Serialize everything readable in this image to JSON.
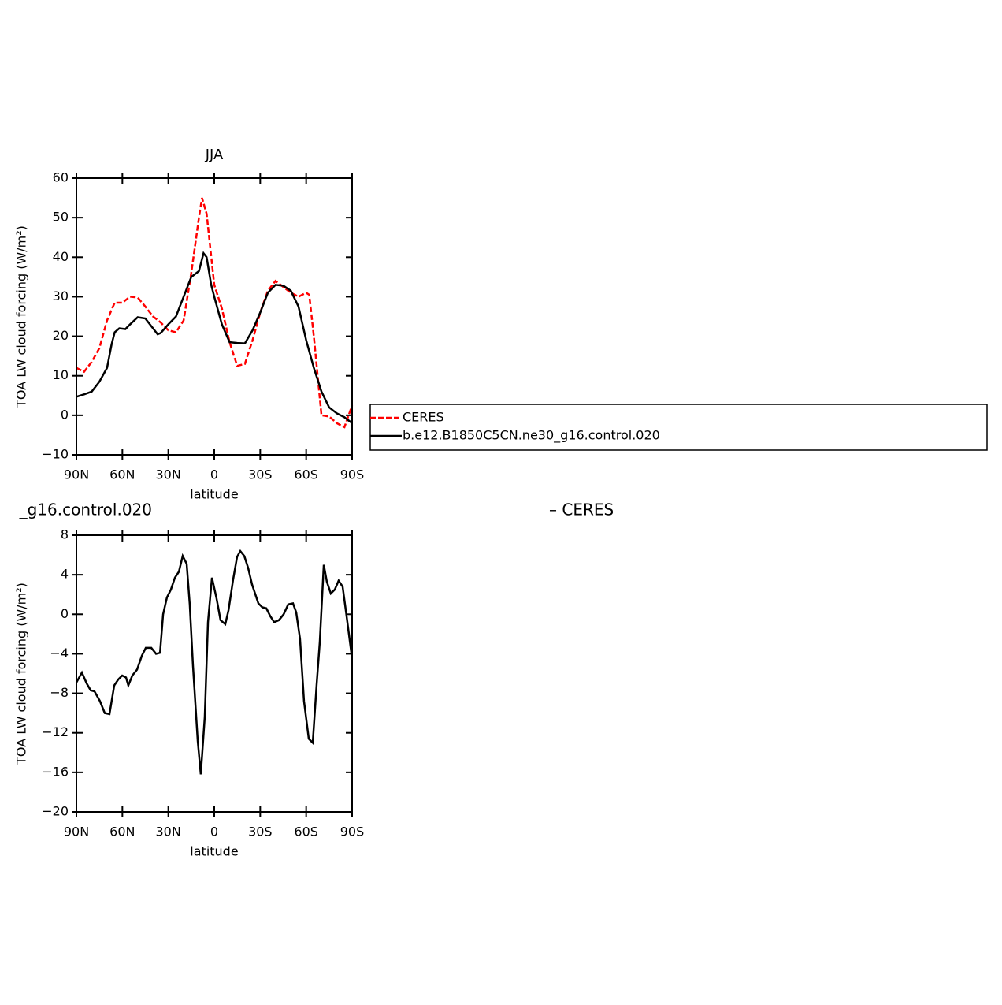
{
  "chart_data": [
    {
      "type": "line",
      "title": "JJA",
      "xlabel": "latitude",
      "ylabel": "TOA LW cloud forcing (W/m²)",
      "xlim": [
        90,
        -90
      ],
      "ylim": [
        -10,
        60
      ],
      "xticks": [
        {
          "value": 90,
          "label": "90N"
        },
        {
          "value": 60,
          "label": "60N"
        },
        {
          "value": 30,
          "label": "30N"
        },
        0,
        {
          "value": -30,
          "label": "30S"
        },
        {
          "value": -60,
          "label": "60S"
        },
        {
          "value": -90,
          "label": "90S"
        }
      ],
      "yticks": [
        {
          "value": -10,
          "label": "−10"
        },
        0,
        10,
        20,
        30,
        40,
        50,
        60
      ],
      "legend": "right",
      "series": [
        {
          "name": "CERES",
          "color": "#ff0000",
          "dash": true,
          "x": [
            90,
            85,
            80,
            75,
            70,
            65,
            60,
            55,
            50,
            45,
            40,
            35,
            30,
            25,
            20,
            15,
            10,
            8,
            5,
            0,
            -5,
            -10,
            -15,
            -20,
            -25,
            -30,
            -35,
            -40,
            -45,
            -50,
            -55,
            -60,
            -62,
            -65,
            -68,
            -70,
            -75,
            -80,
            -85,
            -90
          ],
          "values": [
            12,
            11,
            13.5,
            17,
            24,
            28.5,
            28.5,
            30,
            29.8,
            27.5,
            25,
            23.5,
            21.5,
            21,
            24,
            36,
            50,
            55,
            51,
            33,
            27,
            18.5,
            12.5,
            13,
            19,
            26,
            31.5,
            34,
            32.5,
            31,
            30,
            31,
            30.5,
            20,
            8,
            0,
            -0.3,
            -2,
            -3,
            2.5
          ]
        },
        {
          "name": "b.e12.B1850C5CN.ne30_g16.control.020",
          "color": "#000000",
          "dash": false,
          "x": [
            90,
            85,
            80,
            75,
            70,
            67,
            65,
            62,
            58,
            55,
            50,
            45,
            40,
            37,
            35,
            30,
            25,
            20,
            15,
            10,
            7,
            5,
            2,
            0,
            -5,
            -10,
            -15,
            -20,
            -25,
            -30,
            -35,
            -40,
            -45,
            -50,
            -55,
            -60,
            -65,
            -70,
            -75,
            -80,
            -85,
            -90
          ],
          "values": [
            4.7,
            5.3,
            6,
            8.5,
            12,
            18,
            21,
            22,
            21.8,
            23,
            24.8,
            24.5,
            22,
            20.5,
            20.8,
            23,
            25,
            30,
            35,
            36.5,
            41,
            40,
            33,
            30,
            23,
            18.5,
            18.3,
            18.2,
            21.5,
            26,
            31,
            33,
            32.8,
            31.5,
            27.5,
            19,
            12,
            6,
            2,
            0.5,
            -0.5,
            -2
          ]
        }
      ]
    },
    {
      "type": "line",
      "title": "_g16.control.020",
      "subtitle": "– CERES",
      "xlabel": "latitude",
      "ylabel": "TOA LW cloud forcing (W/m²)",
      "xlim": [
        90,
        -90
      ],
      "ylim": [
        -20,
        8
      ],
      "xticks": [
        {
          "value": 90,
          "label": "90N"
        },
        {
          "value": 60,
          "label": "60N"
        },
        {
          "value": 30,
          "label": "30N"
        },
        0,
        {
          "value": -30,
          "label": "30S"
        },
        {
          "value": -60,
          "label": "60S"
        },
        {
          "value": -90,
          "label": "90S"
        }
      ],
      "yticks": [
        {
          "value": -20,
          "label": "−20"
        },
        {
          "value": -16,
          "label": "−16"
        },
        {
          "value": -12,
          "label": "−12"
        },
        {
          "value": -8,
          "label": "−8"
        },
        {
          "value": -4,
          "label": "−4"
        },
        0,
        4,
        8
      ],
      "series": [
        {
          "color": "#000000",
          "dash": false,
          "x": [
            90,
            86.4,
            83.3,
            80.7,
            78.2,
            74.6,
            71.5,
            68.4,
            65.3,
            62.7,
            60.1,
            57.6,
            56.1,
            53.5,
            50.4,
            47.3,
            44.7,
            41.1,
            38,
            35.4,
            33.4,
            30.9,
            28.3,
            25.7,
            23.1,
            20.6,
            18,
            16,
            13.9,
            10.8,
            8.8,
            6.2,
            4.1,
            1.5,
            -1.5,
            -4.1,
            -7.2,
            -9.3,
            -12.3,
            -14.9,
            -17,
            -19.6,
            -22.1,
            -24.7,
            -28.8,
            -31.4,
            -34,
            -36.6,
            -39.1,
            -42.2,
            -45.3,
            -48.3,
            -51.4,
            -53.5,
            -56,
            -58.6,
            -61.7,
            -64.3,
            -66.8,
            -68.9,
            -71.5,
            -73.5,
            -76.1,
            -78.7,
            -81.2,
            -83.8,
            -86.4,
            -89.5
          ],
          "values": [
            -6.9,
            -5.9,
            -7,
            -7.7,
            -7.8,
            -8.8,
            -10,
            -10.1,
            -7.2,
            -6.6,
            -6.2,
            -6.4,
            -7.2,
            -6.2,
            -5.6,
            -4.2,
            -3.4,
            -3.4,
            -4,
            -3.9,
            0,
            1.7,
            2.5,
            3.7,
            4.3,
            5.9,
            5.1,
            1,
            -5.2,
            -12.8,
            -16.2,
            -10.4,
            -0.8,
            3.7,
            1.6,
            -0.6,
            -1,
            0.4,
            3.5,
            5.8,
            6.4,
            5.9,
            4.7,
            3,
            1.1,
            0.7,
            0.6,
            -0.2,
            -0.8,
            -0.6,
            0,
            1,
            1.1,
            0.2,
            -2.5,
            -8.8,
            -12.6,
            -13,
            -7.2,
            -2.8,
            5,
            3.3,
            2.1,
            2.5,
            3.4,
            2.8,
            -0.2,
            -3.9
          ]
        }
      ]
    }
  ]
}
